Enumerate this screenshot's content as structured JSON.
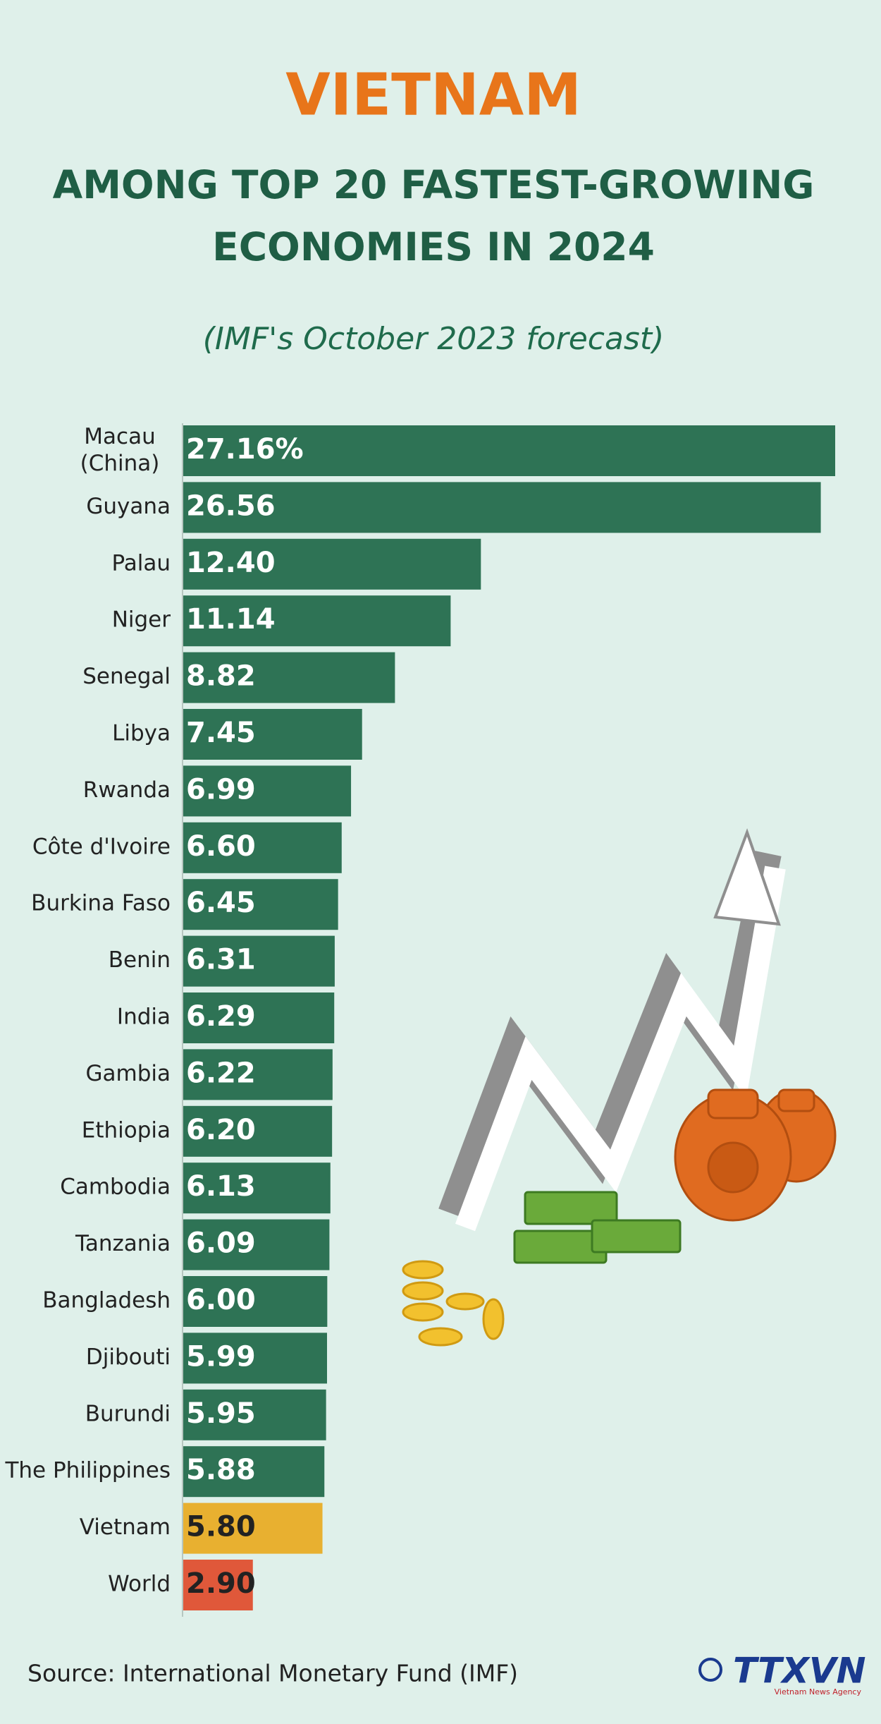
{
  "chart_data": {
    "type": "barh",
    "title": "VIETNAM",
    "subtitle": "AMONG TOP 20 FASTEST-GROWING ECONOMIES IN 2024",
    "note": "(IMF's October 2023 forecast)",
    "categories": [
      "Macau\n(China)",
      "Guyana",
      "Palau",
      "Niger",
      "Senegal",
      "Libya",
      "Rwanda",
      "Côte d'Ivoire",
      "Burkina Faso",
      "Benin",
      "India",
      "Gambia",
      "Ethiopia",
      "Cambodia",
      "Tanzania",
      "Bangladesh",
      "Djibouti",
      "Burundi",
      "The Philippines",
      "Vietnam",
      "World"
    ],
    "values": [
      27.16,
      26.56,
      12.4,
      11.14,
      8.82,
      7.45,
      6.99,
      6.6,
      6.45,
      6.31,
      6.29,
      6.22,
      6.2,
      6.13,
      6.09,
      6.0,
      5.99,
      5.95,
      5.88,
      5.8,
      2.9
    ],
    "value_labels": [
      "27.16%",
      "26.56",
      "12.40",
      "11.14",
      "8.82",
      "7.45",
      "6.99",
      "6.60",
      "6.45",
      "6.31",
      "6.29",
      "6.22",
      "6.20",
      "6.13",
      "6.09",
      "6.00",
      "5.99",
      "5.95",
      "5.88",
      "5.80",
      "2.90"
    ],
    "colors": [
      "#2e7355",
      "#2e7355",
      "#2e7355",
      "#2e7355",
      "#2e7355",
      "#2e7355",
      "#2e7355",
      "#2e7355",
      "#2e7355",
      "#2e7355",
      "#2e7355",
      "#2e7355",
      "#2e7355",
      "#2e7355",
      "#2e7355",
      "#2e7355",
      "#2e7355",
      "#2e7355",
      "#2e7355",
      "#e8b030",
      "#e0583a"
    ],
    "source": "Source: International Monetary Fund (IMF)",
    "logo": "TTXVN",
    "logo_caption": "Vietnam News Agency"
  }
}
